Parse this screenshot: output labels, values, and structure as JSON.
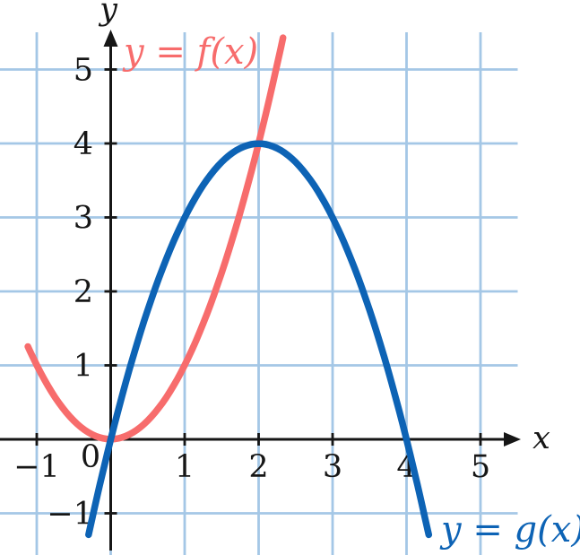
{
  "colors": {
    "background": "#ffffff",
    "grid": "#a4c7e6",
    "axis": "#161616",
    "tick_text": "#161616",
    "f_curve": "#f76c6c",
    "g_curve": "#0d63b5"
  },
  "chart_data": {
    "type": "line",
    "title": "",
    "x_axis_label": "x",
    "y_axis_label": "y",
    "origin_label": "0",
    "grid": true,
    "legend_position": "on-plot",
    "xlim": [
      -1.5,
      6.34
    ],
    "ylim": [
      -1.56,
      5.94
    ],
    "grid_x": [
      -1,
      0,
      1,
      2,
      3,
      4,
      5
    ],
    "grid_y": [
      -1,
      0,
      1,
      2,
      3,
      4,
      5
    ],
    "x_ticks": [
      {
        "v": -1,
        "label": "−1"
      },
      {
        "v": 1,
        "label": "1"
      },
      {
        "v": 2,
        "label": "2"
      },
      {
        "v": 3,
        "label": "3"
      },
      {
        "v": 4,
        "label": "4"
      },
      {
        "v": 5,
        "label": "5"
      }
    ],
    "y_ticks": [
      {
        "v": -1,
        "label": "−1"
      },
      {
        "v": 1,
        "label": "1"
      },
      {
        "v": 2,
        "label": "2"
      },
      {
        "v": 3,
        "label": "3"
      },
      {
        "v": 4,
        "label": "4"
      },
      {
        "v": 5,
        "label": "5"
      }
    ],
    "series": [
      {
        "name": "f",
        "label": "y = f(x)",
        "color": "#f76c6c",
        "points": [
          [
            -1.12,
            1.2544
          ],
          [
            -1.1,
            1.21
          ],
          [
            -1,
            1
          ],
          [
            -0.9,
            0.81
          ],
          [
            -0.8,
            0.64
          ],
          [
            -0.7,
            0.49
          ],
          [
            -0.6,
            0.36
          ],
          [
            -0.5,
            0.25
          ],
          [
            -0.4,
            0.16
          ],
          [
            -0.3,
            0.09
          ],
          [
            -0.2,
            0.04
          ],
          [
            -0.1,
            0.01
          ],
          [
            0,
            0
          ],
          [
            0.1,
            0.01
          ],
          [
            0.2,
            0.04
          ],
          [
            0.3,
            0.09
          ],
          [
            0.4,
            0.16
          ],
          [
            0.5,
            0.25
          ],
          [
            0.6,
            0.36
          ],
          [
            0.7,
            0.49
          ],
          [
            0.8,
            0.64
          ],
          [
            0.9,
            0.81
          ],
          [
            1,
            1
          ],
          [
            1.1,
            1.21
          ],
          [
            1.2,
            1.44
          ],
          [
            1.3,
            1.69
          ],
          [
            1.4,
            1.96
          ],
          [
            1.5,
            2.25
          ],
          [
            1.6,
            2.56
          ],
          [
            1.7,
            2.89
          ],
          [
            1.8,
            3.24
          ],
          [
            1.9,
            3.61
          ],
          [
            2,
            4
          ],
          [
            2.1,
            4.41
          ],
          [
            2.2,
            4.84
          ],
          [
            2.3,
            5.29
          ],
          [
            2.33,
            5.4289
          ]
        ]
      },
      {
        "name": "g",
        "label": "y = g(x)",
        "color": "#0d63b5",
        "points": [
          [
            -0.3,
            -1.29
          ],
          [
            -0.2,
            -0.84
          ],
          [
            -0.1,
            -0.41
          ],
          [
            0,
            0
          ],
          [
            0.1,
            0.39
          ],
          [
            0.2,
            0.76
          ],
          [
            0.3,
            1.11
          ],
          [
            0.4,
            1.44
          ],
          [
            0.5,
            1.75
          ],
          [
            0.6,
            2.04
          ],
          [
            0.7,
            2.31
          ],
          [
            0.8,
            2.56
          ],
          [
            0.9,
            2.79
          ],
          [
            1,
            3
          ],
          [
            1.1,
            3.19
          ],
          [
            1.2,
            3.36
          ],
          [
            1.3,
            3.51
          ],
          [
            1.4,
            3.64
          ],
          [
            1.5,
            3.75
          ],
          [
            1.6,
            3.84
          ],
          [
            1.7,
            3.91
          ],
          [
            1.8,
            3.96
          ],
          [
            1.9,
            3.99
          ],
          [
            2,
            4
          ],
          [
            2.1,
            3.99
          ],
          [
            2.2,
            3.96
          ],
          [
            2.3,
            3.91
          ],
          [
            2.4,
            3.84
          ],
          [
            2.5,
            3.75
          ],
          [
            2.6,
            3.64
          ],
          [
            2.7,
            3.51
          ],
          [
            2.8,
            3.36
          ],
          [
            2.9,
            3.19
          ],
          [
            3,
            3
          ],
          [
            3.1,
            2.79
          ],
          [
            3.2,
            2.56
          ],
          [
            3.3,
            2.31
          ],
          [
            3.4,
            2.04
          ],
          [
            3.5,
            1.75
          ],
          [
            3.6,
            1.44
          ],
          [
            3.7,
            1.11
          ],
          [
            3.8,
            0.76
          ],
          [
            3.9,
            0.39
          ],
          [
            4,
            0
          ],
          [
            4.1,
            -0.41
          ],
          [
            4.2,
            -0.84
          ],
          [
            4.3,
            -1.29
          ]
        ]
      }
    ]
  }
}
